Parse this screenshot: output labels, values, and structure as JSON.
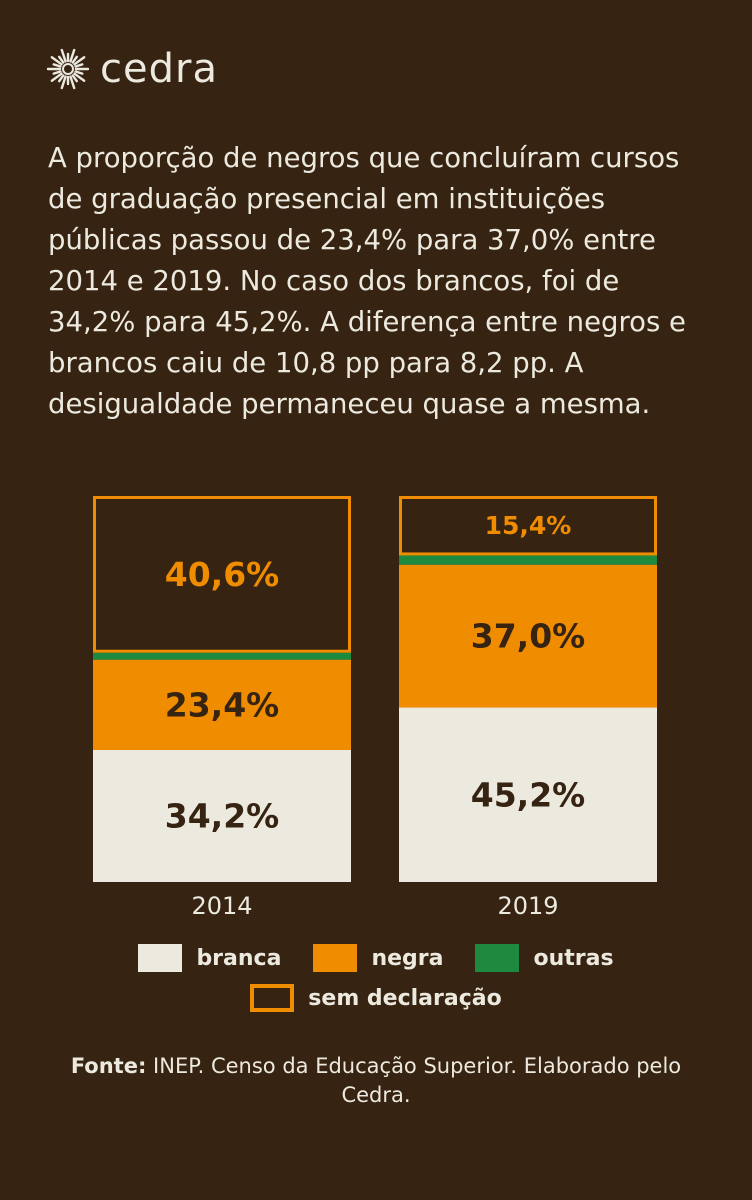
{
  "brand": {
    "name": "cedra"
  },
  "intro_text": "A proporção de negros que concluíram cursos de graduação presencial em instituições públicas passou de 23,4% para 37,0% entre 2014 e 2019. No caso dos brancos, foi de 34,2% para 45,2%. A diferença entre negros e brancos caiu de 10,8 pp para 8,2 pp. A desigualdade permaneceu quase a mesma.",
  "chart_data": {
    "type": "bar",
    "stacked": true,
    "normalized": true,
    "categories": [
      "2014",
      "2019"
    ],
    "series": [
      {
        "name": "branca",
        "values": [
          34.2,
          45.2
        ],
        "labels": [
          "34,2%",
          "45,2%"
        ],
        "color": "#ECE9DF",
        "label_color": "#362312"
      },
      {
        "name": "negra",
        "values": [
          23.4,
          37.0
        ],
        "labels": [
          "23,4%",
          "37,0%"
        ],
        "color": "#F08C00",
        "label_color": "#362312"
      },
      {
        "name": "outras",
        "values": [
          1.8,
          2.4
        ],
        "labels": [
          "",
          ""
        ],
        "color": "#1E8A3F",
        "label_color": "#ECE9DF"
      },
      {
        "name": "sem declaração",
        "values": [
          40.6,
          15.4
        ],
        "labels": [
          "40,6%",
          "15,4%"
        ],
        "color": "outline",
        "outline_color": "#F08C00",
        "label_color": "#F08C00"
      }
    ],
    "ylim": [
      0,
      100
    ]
  },
  "legend": {
    "items": [
      {
        "key": "branca",
        "label": "branca",
        "color": "#ECE9DF"
      },
      {
        "key": "negra",
        "label": "negra",
        "color": "#F08C00"
      },
      {
        "key": "outras",
        "label": "outras",
        "color": "#1E8A3F"
      },
      {
        "key": "sem-declaracao",
        "label": "sem declaração",
        "outline": "#F08C00"
      }
    ]
  },
  "source": {
    "prefix": "Fonte:",
    "text": " INEP. Censo da Educação Superior. Elaborado pelo Cedra."
  },
  "colors": {
    "background": "#362312",
    "text": "#ECE9DF",
    "accent": "#F08C00",
    "green": "#1E8A3F"
  }
}
